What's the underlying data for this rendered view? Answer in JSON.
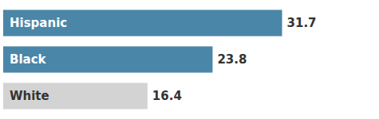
{
  "chart_data": {
    "type": "bar",
    "orientation": "horizontal",
    "categories": [
      "Hispanic",
      "Black",
      "White"
    ],
    "values": [
      31.7,
      23.8,
      16.4
    ],
    "colors": [
      "#4a86a8",
      "#4a86a8",
      "#d3d3d3"
    ],
    "xlim": [
      0,
      38
    ],
    "data_labels": true,
    "tick_labels": false,
    "grid": false
  }
}
